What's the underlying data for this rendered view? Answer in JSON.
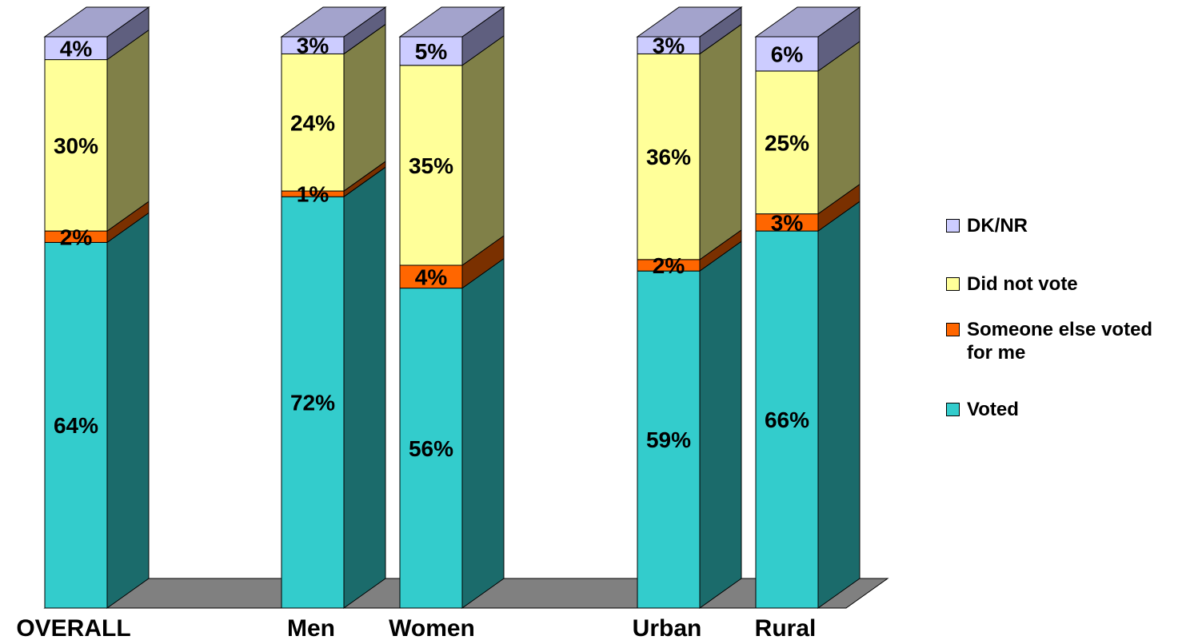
{
  "chart_data": {
    "type": "bar",
    "stacked": true,
    "three_d": true,
    "categories": [
      "OVERALL",
      "Men",
      "Women",
      "Urban",
      "Rural"
    ],
    "series": [
      {
        "name": "Voted",
        "values": [
          64,
          72,
          56,
          59,
          66
        ],
        "labels": [
          "64%",
          "72%",
          "56%",
          "59%",
          "66%"
        ]
      },
      {
        "name": "Someone else voted for me",
        "values": [
          2,
          1,
          4,
          2,
          3
        ],
        "labels": [
          "2%",
          "1%",
          "4%",
          "2%",
          "3%"
        ]
      },
      {
        "name": "Did not vote",
        "values": [
          30,
          24,
          35,
          36,
          25
        ],
        "labels": [
          "30%",
          "24%",
          "35%",
          "36%",
          "25%"
        ]
      },
      {
        "name": "DK/NR",
        "values": [
          4,
          3,
          5,
          3,
          6
        ],
        "labels": [
          "4%",
          "3%",
          "5%",
          "3%",
          "6%"
        ]
      }
    ],
    "colors": {
      "Voted": {
        "front": "#33CCCC",
        "side": "#1B6B6B",
        "top": "#29A3A3"
      },
      "Someone else voted for me": {
        "front": "#FF6600",
        "side": "#7A3000",
        "top": "#CC5200"
      },
      "Did not vote": {
        "front": "#FFFF99",
        "side": "#808048",
        "top": "#CCCC7A"
      },
      "DK/NR": {
        "front": "#CCCCFF",
        "side": "#5F5F7F",
        "top": "#A3A3CC"
      },
      "floor": "#808080"
    },
    "legend": {
      "position": "right",
      "order": [
        "DK/NR",
        "Did not vote",
        "Someone else voted for me",
        "Voted"
      ],
      "lines": {
        "DK/NR": [
          "DK/NR"
        ],
        "Did not vote": [
          "Did not vote"
        ],
        "Someone else voted for me": [
          "Someone else voted",
          "for me"
        ],
        "Voted": [
          "Voted"
        ]
      }
    },
    "title": "",
    "xlabel": "",
    "ylabel": "",
    "ylim": [
      0,
      100
    ],
    "grid": false
  }
}
